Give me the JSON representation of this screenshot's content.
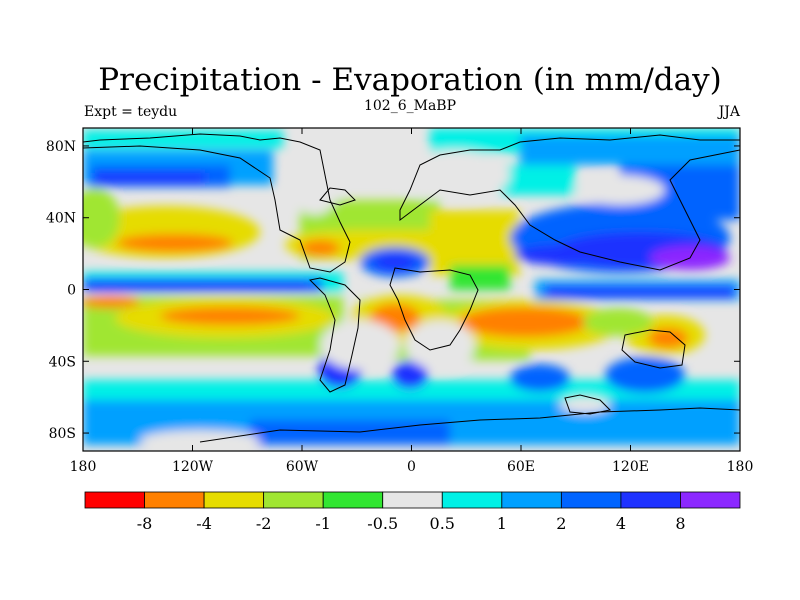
{
  "title": "Precipitation - Evaporation (in mm/day)",
  "left_label": "Expt = teydu",
  "center_label": "102_6_MaBP",
  "right_label": "JJA",
  "lat_tick_labels": [
    "80N",
    "40N",
    "0",
    "40S",
    "80S"
  ],
  "lon_tick_labels": [
    "180",
    "120W",
    "60W",
    "0",
    "60E",
    "120E",
    "180"
  ],
  "colorbar": {
    "colors": [
      "#ff0000",
      "#ff8000",
      "#e6dc00",
      "#a0e632",
      "#32e632",
      "#e6e6e6",
      "#00f0e6",
      "#00a0ff",
      "#0064ff",
      "#1e32ff",
      "#8c28ff"
    ],
    "labels": [
      "-8",
      "-4",
      "-2",
      "-1",
      "-0.5",
      "0.5",
      "1",
      "2",
      "4",
      "8"
    ]
  },
  "chart_data": {
    "type": "heatmap",
    "title": "Precipitation - Evaporation (in mm/day)",
    "subtitle": "102_6_MaBP",
    "annotations": [
      "Expt = teydu",
      "JJA"
    ],
    "x_ticks": [
      "180",
      "120W",
      "60W",
      "0",
      "60E",
      "120E",
      "180"
    ],
    "y_ticks": [
      "80N",
      "40N",
      "0",
      "40S",
      "80S"
    ],
    "xlim": [
      -180,
      180
    ],
    "ylim": [
      -90,
      90
    ],
    "levels": [
      -8,
      -4,
      -2,
      -1,
      -0.5,
      0.5,
      1,
      2,
      4,
      8
    ],
    "units": "mm/day"
  }
}
